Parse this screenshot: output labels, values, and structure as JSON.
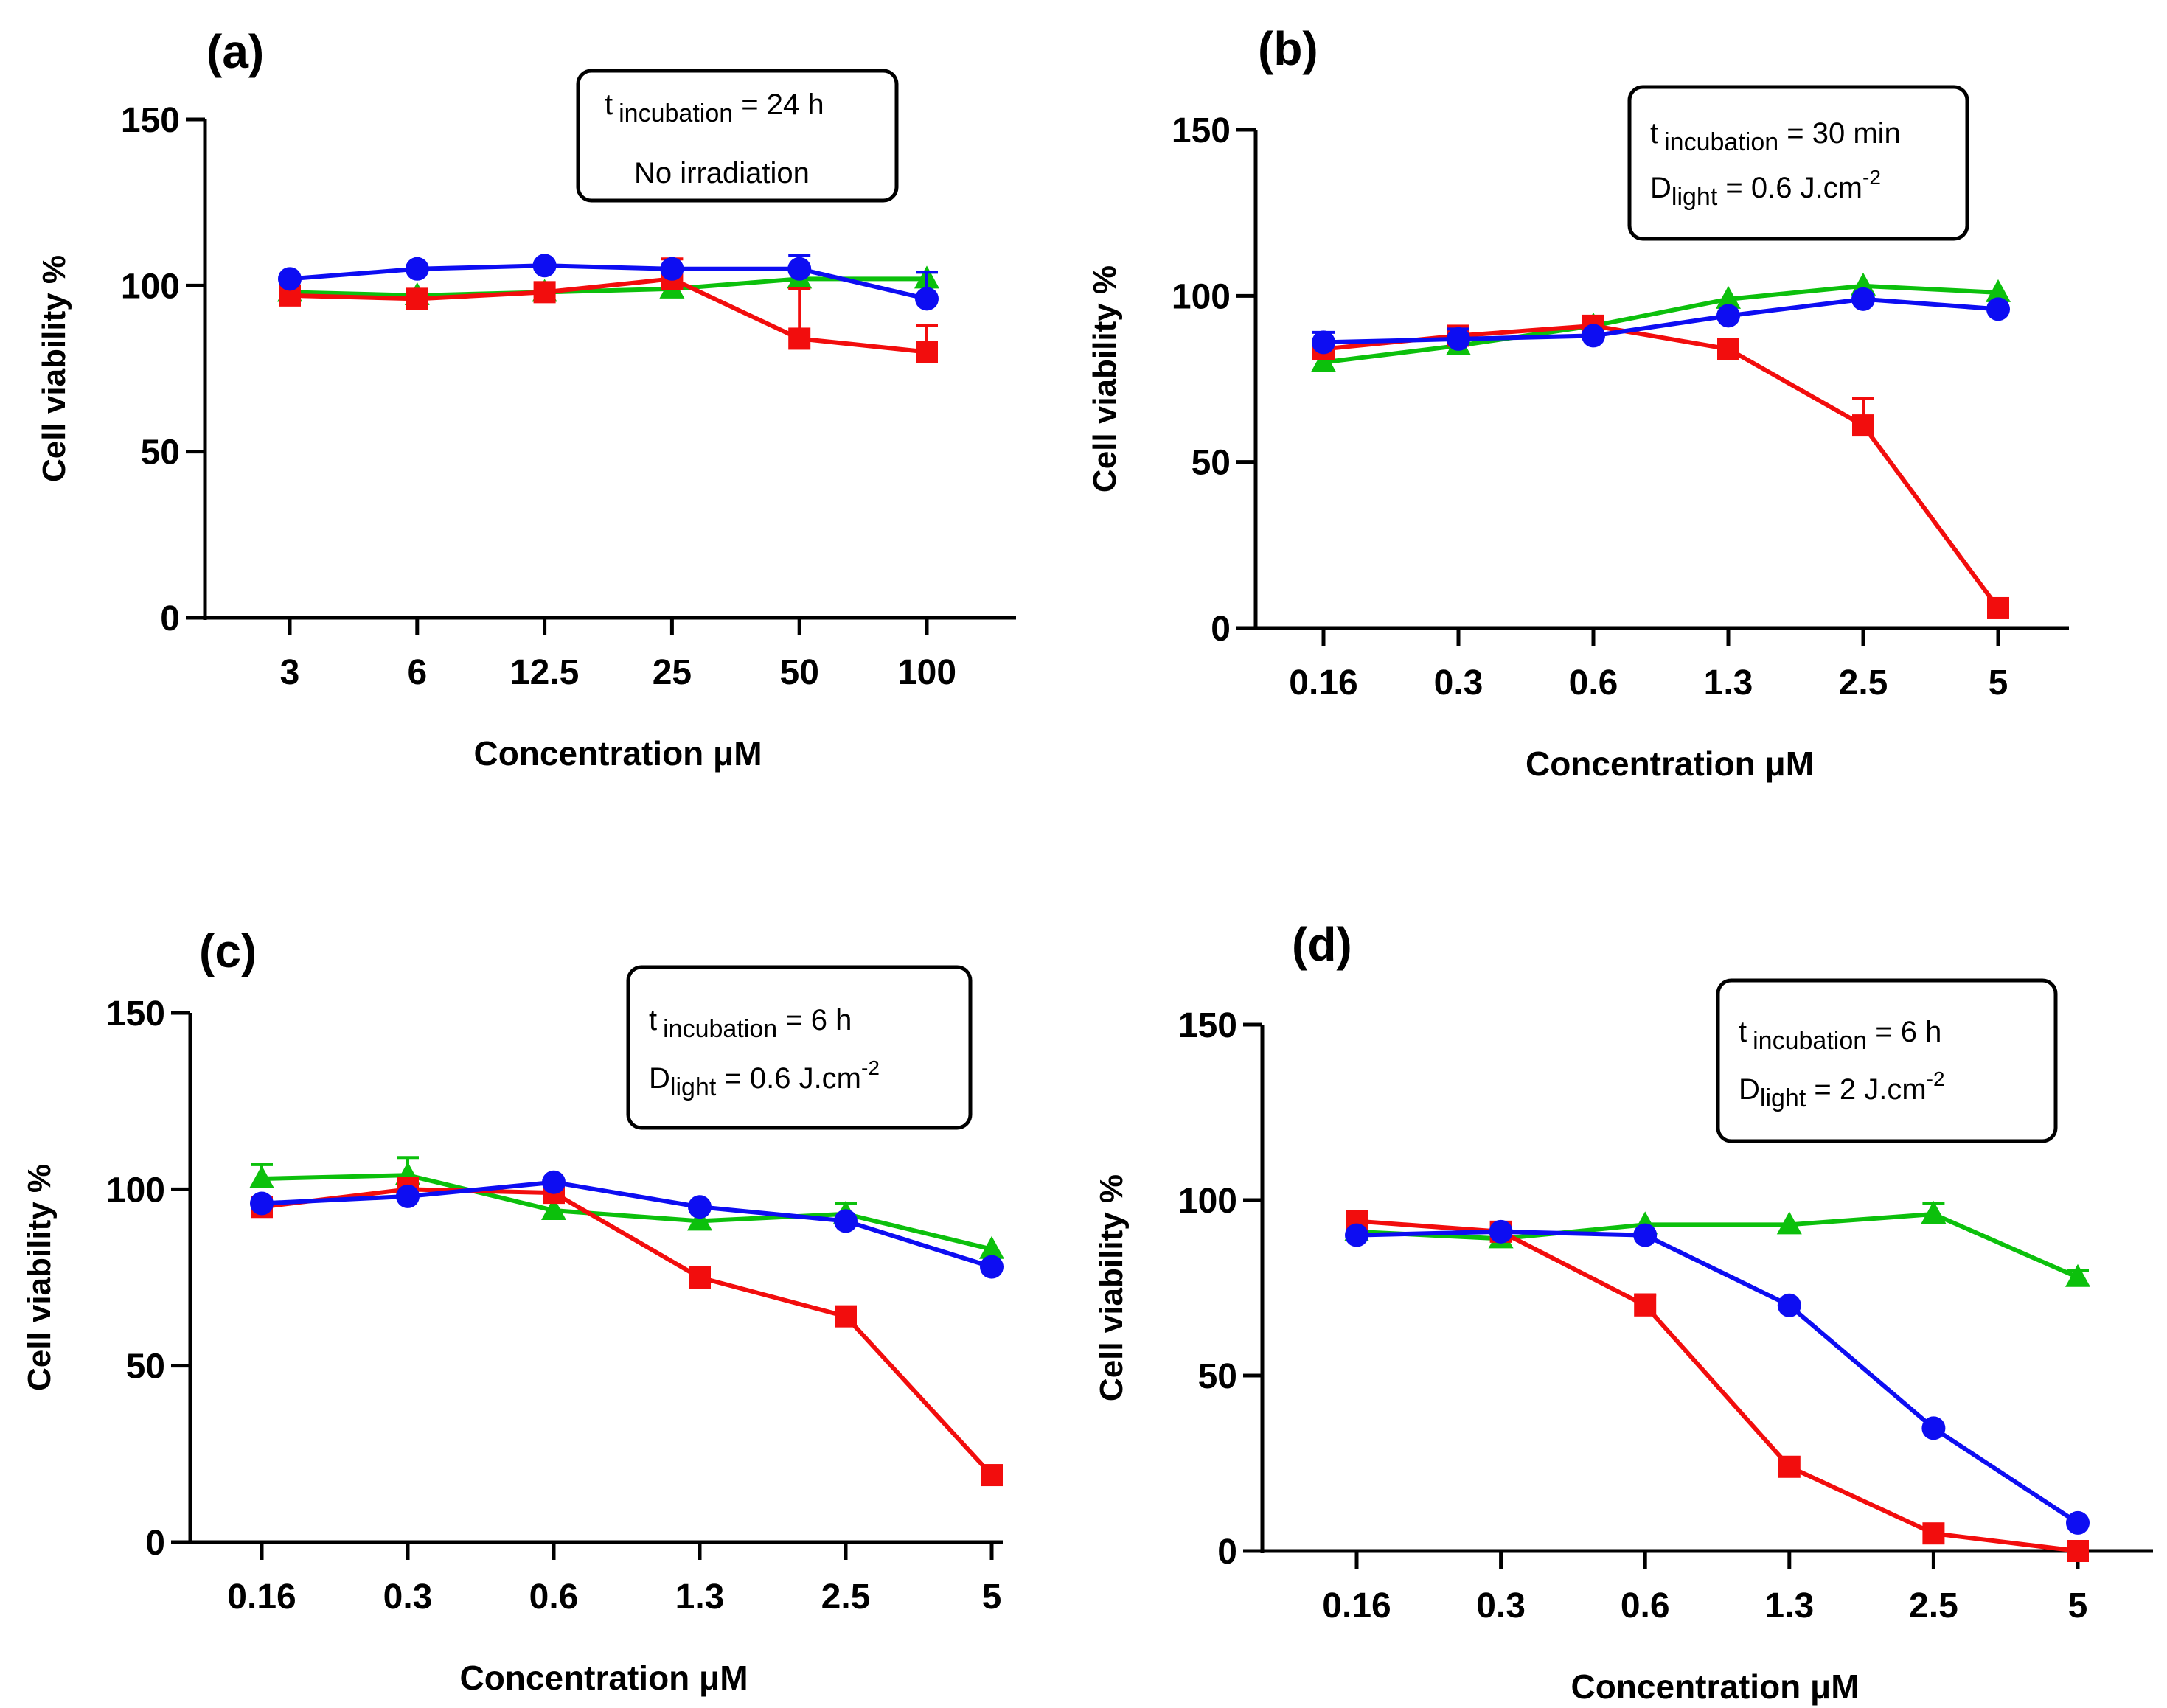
{
  "figure": {
    "series_colors": {
      "red": "#f20d0d",
      "blue": "#0d0df2",
      "green": "#0cc00c"
    },
    "marker_shapes": {
      "red": "square",
      "blue": "circle",
      "green": "triangle"
    }
  },
  "chart_data": [
    {
      "type": "line",
      "panel": "(a)",
      "title": "(a)",
      "categories": [
        "3",
        "6",
        "12.5",
        "25",
        "50",
        "100"
      ],
      "xlabel_main": "Concentration ",
      "xlabel_unit": "μM",
      "ylabel": "Cell viability %",
      "yticks": [
        "0",
        "50",
        "100",
        "150"
      ],
      "ylim": [
        0,
        150
      ],
      "annotation": {
        "line1_main": "t",
        "line1_sub": "incubation",
        "line1_rest": " = 24 h",
        "line2_text": "No irradiation"
      },
      "series": [
        {
          "name": "green",
          "color": "#0cc00c",
          "marker": "triangle",
          "values": [
            98,
            97,
            98,
            99,
            102,
            102
          ],
          "errors": [
            0,
            0,
            0,
            0,
            2,
            2
          ]
        },
        {
          "name": "red",
          "color": "#f20d0d",
          "marker": "square",
          "values": [
            97,
            96,
            98,
            102,
            84,
            80
          ],
          "errors": [
            0,
            0,
            0,
            6,
            15,
            8
          ]
        },
        {
          "name": "blue",
          "color": "#0d0df2",
          "marker": "circle",
          "values": [
            102,
            105,
            106,
            105,
            105,
            96
          ],
          "errors": [
            0,
            0,
            0,
            0,
            4,
            8
          ]
        }
      ]
    },
    {
      "type": "line",
      "panel": "(b)",
      "title": "(b)",
      "categories": [
        "0.16",
        "0.3",
        "0.6",
        "1.3",
        "2.5",
        "5"
      ],
      "xlabel_main": "Concentration ",
      "xlabel_unit": "μM",
      "ylabel": "Cell viability %",
      "yticks": [
        "0",
        "50",
        "100",
        "150"
      ],
      "ylim": [
        0,
        150
      ],
      "annotation": {
        "line1_main": "t",
        "line1_sub": "incubation",
        "line1_rest": " = 30 min",
        "line2_main": "D",
        "line2_sub": "light",
        "line2_rest": " = 0.6 J.cm",
        "line2_sup": "-2"
      },
      "series": [
        {
          "name": "green",
          "color": "#0cc00c",
          "marker": "triangle",
          "values": [
            80,
            85,
            91,
            99,
            103,
            101
          ],
          "errors": [
            0,
            0,
            0,
            0,
            0,
            0
          ]
        },
        {
          "name": "red",
          "color": "#f20d0d",
          "marker": "square",
          "values": [
            84,
            88,
            91,
            84,
            61,
            6
          ],
          "errors": [
            0,
            0,
            2,
            0,
            8,
            0
          ]
        },
        {
          "name": "blue",
          "color": "#0d0df2",
          "marker": "circle",
          "values": [
            86,
            87,
            88,
            94,
            99,
            96
          ],
          "errors": [
            3,
            3,
            0,
            0,
            0,
            0
          ]
        }
      ]
    },
    {
      "type": "line",
      "panel": "(c)",
      "title": "(c)",
      "categories": [
        "0.16",
        "0.3",
        "0.6",
        "1.3",
        "2.5",
        "5"
      ],
      "xlabel_main": "Concentration ",
      "xlabel_unit": "μM",
      "ylabel": "Cell viability %",
      "yticks": [
        "0",
        "50",
        "100",
        "150"
      ],
      "ylim": [
        0,
        150
      ],
      "annotation": {
        "line1_main": "t",
        "line1_sub": "incubation",
        "line1_rest": " = 6 h",
        "line2_main": "D",
        "line2_sub": "light",
        "line2_rest": " = 0.6 J.cm",
        "line2_sup": "-2"
      },
      "series": [
        {
          "name": "green",
          "color": "#0cc00c",
          "marker": "triangle",
          "values": [
            103,
            104,
            94,
            91,
            93,
            83
          ],
          "errors": [
            4,
            5,
            0,
            0,
            3,
            0
          ]
        },
        {
          "name": "red",
          "color": "#f20d0d",
          "marker": "square",
          "values": [
            95,
            100,
            99,
            75,
            64,
            19
          ],
          "errors": [
            0,
            3,
            2,
            0,
            0,
            0
          ]
        },
        {
          "name": "blue",
          "color": "#0d0df2",
          "marker": "circle",
          "values": [
            96,
            98,
            102,
            95,
            91,
            78
          ],
          "errors": [
            0,
            0,
            0,
            0,
            0,
            0
          ]
        }
      ]
    },
    {
      "type": "line",
      "panel": "(d)",
      "title": "(d)",
      "categories": [
        "0.16",
        "0.3",
        "0.6",
        "1.3",
        "2.5",
        "5"
      ],
      "xlabel_main": "Concentration ",
      "xlabel_unit": "μM",
      "ylabel": "Cell viability %",
      "yticks": [
        "0",
        "50",
        "100",
        "150"
      ],
      "ylim": [
        0,
        150
      ],
      "annotation": {
        "line1_main": "t",
        "line1_sub": "incubation",
        "line1_rest": " = 6 h",
        "line2_main": "D",
        "line2_sub": "light",
        "line2_rest": " = 2 J.cm",
        "line2_sup": "-2"
      },
      "series": [
        {
          "name": "green",
          "color": "#0cc00c",
          "marker": "triangle",
          "values": [
            91,
            89,
            93,
            93,
            96,
            78
          ],
          "errors": [
            0,
            0,
            0,
            0,
            3,
            2
          ]
        },
        {
          "name": "red",
          "color": "#f20d0d",
          "marker": "square",
          "values": [
            94,
            91,
            70,
            24,
            5,
            0
          ],
          "errors": [
            0,
            0,
            3,
            0,
            0,
            0
          ]
        },
        {
          "name": "blue",
          "color": "#0d0df2",
          "marker": "circle",
          "values": [
            90,
            91,
            90,
            70,
            35,
            8
          ],
          "errors": [
            0,
            0,
            0,
            0,
            0,
            0
          ]
        }
      ]
    }
  ]
}
